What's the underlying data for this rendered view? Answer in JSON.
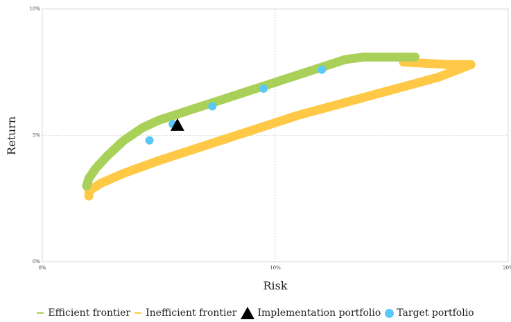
{
  "chart_data": {
    "type": "scatter",
    "xlabel": "Risk",
    "ylabel": "Return",
    "xlim": [
      0,
      20
    ],
    "ylim": [
      0,
      10
    ],
    "x_ticks": [
      "0%",
      "10%",
      "20%"
    ],
    "y_ticks": [
      "0%",
      "5%",
      "10%"
    ],
    "grid": true,
    "legend_position": "bottom",
    "series": [
      {
        "name": "Efficient frontier",
        "type": "curve",
        "color": "#a9d159",
        "points": [
          [
            1.9,
            3.0
          ],
          [
            2.0,
            3.3
          ],
          [
            2.3,
            3.7
          ],
          [
            2.8,
            4.2
          ],
          [
            3.5,
            4.8
          ],
          [
            4.3,
            5.3
          ],
          [
            5.0,
            5.6
          ],
          [
            6.0,
            5.9
          ],
          [
            7.0,
            6.2
          ],
          [
            8.0,
            6.5
          ],
          [
            9.0,
            6.8
          ],
          [
            10.0,
            7.1
          ],
          [
            11.0,
            7.4
          ],
          [
            12.0,
            7.7
          ],
          [
            13.0,
            8.0
          ],
          [
            13.8,
            8.1
          ],
          [
            14.5,
            8.1
          ],
          [
            15.2,
            8.1
          ],
          [
            16.0,
            8.1
          ]
        ]
      },
      {
        "name": "Inefficient frontier",
        "type": "curve",
        "color": "#ffc947",
        "points": [
          [
            16.0,
            7.9
          ],
          [
            15.5,
            7.9
          ],
          [
            16.5,
            7.85
          ],
          [
            17.5,
            7.8
          ],
          [
            18.4,
            7.8
          ],
          [
            17.0,
            7.3
          ],
          [
            15.0,
            6.8
          ],
          [
            13.0,
            6.3
          ],
          [
            11.0,
            5.8
          ],
          [
            9.0,
            5.2
          ],
          [
            7.0,
            4.6
          ],
          [
            5.0,
            4.0
          ],
          [
            3.5,
            3.5
          ],
          [
            2.5,
            3.1
          ],
          [
            2.0,
            2.8
          ],
          [
            2.0,
            2.6
          ]
        ]
      },
      {
        "name": "Implementation portfolio",
        "type": "marker",
        "marker": "triangle",
        "color": "#000000",
        "points": [
          [
            5.8,
            5.4
          ]
        ]
      },
      {
        "name": "Target portfolio",
        "type": "marker",
        "marker": "circle",
        "color": "#5bc8f5",
        "points": [
          [
            4.6,
            4.8
          ],
          [
            5.6,
            5.45
          ],
          [
            7.3,
            6.15
          ],
          [
            9.5,
            6.85
          ],
          [
            12.0,
            7.6
          ]
        ]
      }
    ]
  }
}
